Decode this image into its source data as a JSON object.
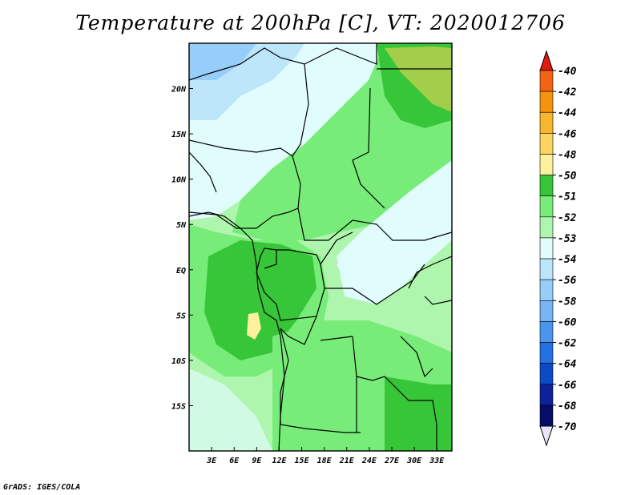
{
  "title": "Temperature at 200hPa [C], VT: 2020012706",
  "credit": "GrADS: IGES/COLA",
  "map": {
    "lat_labels": [
      "20N",
      "15N",
      "10N",
      "5N",
      "EQ",
      "5S",
      "10S",
      "15S"
    ],
    "lat_values": [
      20,
      15,
      10,
      5,
      0,
      -5,
      -10,
      -15
    ],
    "lon_labels": [
      "3E",
      "6E",
      "9E",
      "12E",
      "15E",
      "18E",
      "21E",
      "24E",
      "27E",
      "30E",
      "33E"
    ],
    "lon_values": [
      3,
      6,
      9,
      12,
      15,
      18,
      21,
      24,
      27,
      30,
      33
    ],
    "lon_range": [
      0,
      35
    ],
    "lat_range": [
      -20,
      25
    ]
  },
  "colorbar": {
    "labels": [
      "-40",
      "-42",
      "-44",
      "-46",
      "-48",
      "-50",
      "-51",
      "-52",
      "-53",
      "-54",
      "-56",
      "-58",
      "-60",
      "-62",
      "-64",
      "-66",
      "-68",
      "-70"
    ],
    "colors": [
      "#f12a17",
      "#f26414",
      "#f5930f",
      "#f7b72c",
      "#fbd55f",
      "#fff0a0",
      "#37c637",
      "#78ec78",
      "#aef5ae",
      "#e0fcfc",
      "#bde6fb",
      "#96cdf9",
      "#78b4f6",
      "#4a96ee",
      "#2370e2",
      "#0c4bc8",
      "#0d229a",
      "#070d66"
    ],
    "top_arrow_color": "#e01a0c",
    "bottom_arrow_color": "#e6e6f8"
  }
}
